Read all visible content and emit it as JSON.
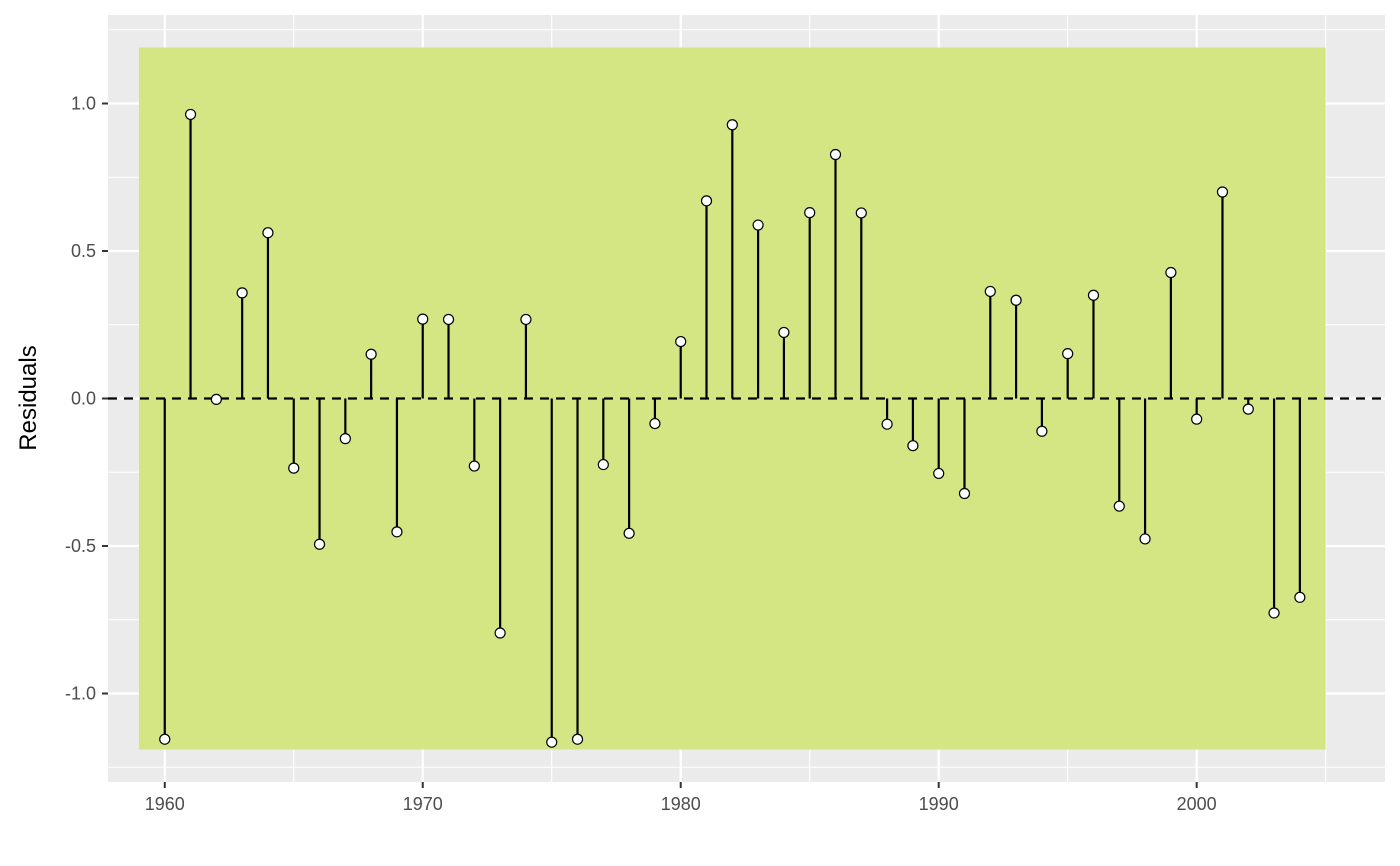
{
  "chart_data": {
    "type": "lollipop",
    "title": "",
    "xlabel": "",
    "ylabel": "Residuals",
    "xlim": [
      1957.8,
      2007.3
    ],
    "ylim": [
      -1.3,
      1.3
    ],
    "x_ticks": [
      1960,
      1970,
      1980,
      1990,
      2000
    ],
    "x_tick_labels": [
      "1960",
      "1970",
      "1980",
      "1990",
      "2000"
    ],
    "y_ticks": [
      -1.0,
      -0.5,
      0.0,
      0.5,
      1.0
    ],
    "y_tick_labels": [
      "-1.0",
      "-0.5",
      "0.0",
      "0.5",
      "1.0"
    ],
    "grid": true,
    "reference_line": {
      "y": 0,
      "style": "dashed",
      "color": "#000000"
    },
    "band": {
      "x_range": [
        1959,
        2005
      ],
      "y_range": [
        -1.19,
        1.19
      ],
      "color": "#d4e683"
    },
    "colors": {
      "panel": "#ebebeb",
      "grid": "#ffffff",
      "stem": "#000000",
      "point_fill": "#ffffff",
      "point_stroke": "#000000"
    },
    "x": [
      1960,
      1961,
      1962,
      1963,
      1964,
      1965,
      1966,
      1967,
      1968,
      1969,
      1970,
      1971,
      1972,
      1973,
      1974,
      1975,
      1976,
      1977,
      1978,
      1979,
      1980,
      1981,
      1982,
      1983,
      1984,
      1985,
      1986,
      1987,
      1988,
      1989,
      1990,
      1991,
      1992,
      1993,
      1994,
      1995,
      1996,
      1997,
      1998,
      1999,
      2000,
      2001,
      2002,
      2003,
      2004
    ],
    "values": [
      -1.155,
      0.963,
      -0.003,
      0.358,
      0.562,
      -0.236,
      -0.494,
      -0.136,
      0.15,
      -0.452,
      0.269,
      0.268,
      -0.229,
      -0.795,
      0.268,
      -1.165,
      -1.155,
      -0.224,
      -0.457,
      -0.085,
      0.193,
      0.67,
      0.928,
      0.588,
      0.224,
      0.63,
      0.827,
      0.629,
      -0.087,
      -0.16,
      -0.254,
      -0.322,
      0.363,
      0.333,
      -0.111,
      0.152,
      0.35,
      -0.365,
      -0.476,
      0.427,
      -0.07,
      0.7,
      -0.036,
      -0.727,
      -0.674
    ]
  }
}
